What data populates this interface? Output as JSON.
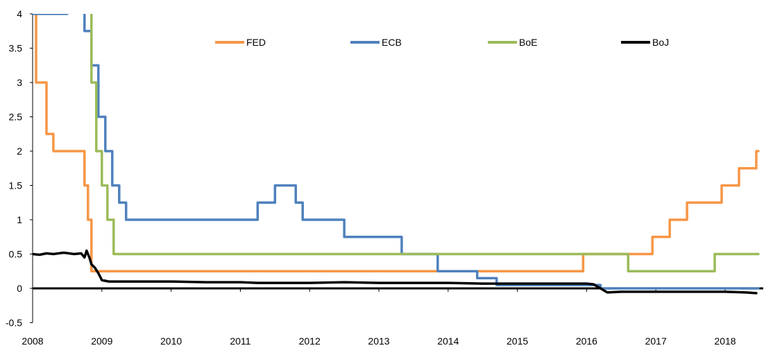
{
  "chart_data": {
    "type": "line",
    "title": "",
    "xlabel": "",
    "ylabel": "",
    "xlim": [
      2008,
      2018.55
    ],
    "ylim": [
      -0.5,
      4
    ],
    "x_ticks": [
      2008,
      2009,
      2010,
      2011,
      2012,
      2013,
      2014,
      2015,
      2016,
      2017,
      2018
    ],
    "y_ticks": [
      -0.5,
      0,
      0.5,
      1,
      1.5,
      2,
      2.5,
      3,
      3.5,
      4
    ],
    "y_tick_labels": [
      "-0.5",
      "0",
      "0.5",
      "1",
      "1.5",
      "2",
      "2.5",
      "3",
      "3.5",
      "4"
    ],
    "grid": false,
    "legend": {
      "placement": "top",
      "orientation": "horizontal"
    },
    "series": [
      {
        "name": "FED",
        "color": "#F79646",
        "step": true,
        "x": [
          2008.0,
          2008.05,
          2008.2,
          2008.3,
          2008.75,
          2008.8,
          2008.85,
          2008.95,
          2015.95,
          2016.95,
          2017.2,
          2017.45,
          2017.95,
          2018.2,
          2018.45
        ],
        "y": [
          4.25,
          3.0,
          2.25,
          2.0,
          1.5,
          1.0,
          0.25,
          0.25,
          0.5,
          0.75,
          1.0,
          1.25,
          1.5,
          1.75,
          2.0
        ]
      },
      {
        "name": "ECB",
        "color": "#4F81BD",
        "step": true,
        "x": [
          2008.0,
          2008.5,
          2008.75,
          2008.85,
          2008.95,
          2009.05,
          2009.15,
          2009.25,
          2009.35,
          2011.25,
          2011.5,
          2011.8,
          2011.9,
          2012.5,
          2013.33,
          2013.85,
          2014.42,
          2014.7,
          2016.2
        ],
        "y": [
          4.0,
          4.25,
          3.75,
          3.25,
          2.5,
          2.0,
          1.5,
          1.25,
          1.0,
          1.25,
          1.5,
          1.25,
          1.0,
          0.75,
          0.5,
          0.25,
          0.15,
          0.05,
          0.0
        ]
      },
      {
        "name": "BoE",
        "color": "#9BBB59",
        "step": true,
        "x": [
          2008.0,
          2008.85,
          2008.92,
          2009.0,
          2009.08,
          2009.17,
          2016.6,
          2017.85
        ],
        "y": [
          5.25,
          3.0,
          2.0,
          1.5,
          1.0,
          0.5,
          0.25,
          0.5
        ]
      },
      {
        "name": "BoJ",
        "color": "#000000",
        "step": false,
        "x": [
          2008.0,
          2008.1,
          2008.2,
          2008.3,
          2008.45,
          2008.6,
          2008.7,
          2008.75,
          2008.78,
          2008.82,
          2008.85,
          2008.9,
          2008.95,
          2009.0,
          2009.1,
          2009.5,
          2010.0,
          2010.5,
          2011.0,
          2011.25,
          2011.5,
          2012.0,
          2012.5,
          2013.0,
          2013.5,
          2014.0,
          2014.5,
          2015.0,
          2015.5,
          2016.0,
          2016.1,
          2016.2,
          2016.3,
          2016.5,
          2017.0,
          2017.5,
          2018.0,
          2018.3,
          2018.45
        ],
        "y": [
          0.5,
          0.49,
          0.51,
          0.5,
          0.52,
          0.5,
          0.51,
          0.45,
          0.55,
          0.45,
          0.35,
          0.3,
          0.22,
          0.12,
          0.1,
          0.1,
          0.1,
          0.09,
          0.09,
          0.08,
          0.08,
          0.08,
          0.09,
          0.08,
          0.08,
          0.08,
          0.07,
          0.07,
          0.07,
          0.07,
          0.06,
          0.0,
          -0.06,
          -0.05,
          -0.05,
          -0.05,
          -0.05,
          -0.06,
          -0.07
        ]
      }
    ]
  }
}
